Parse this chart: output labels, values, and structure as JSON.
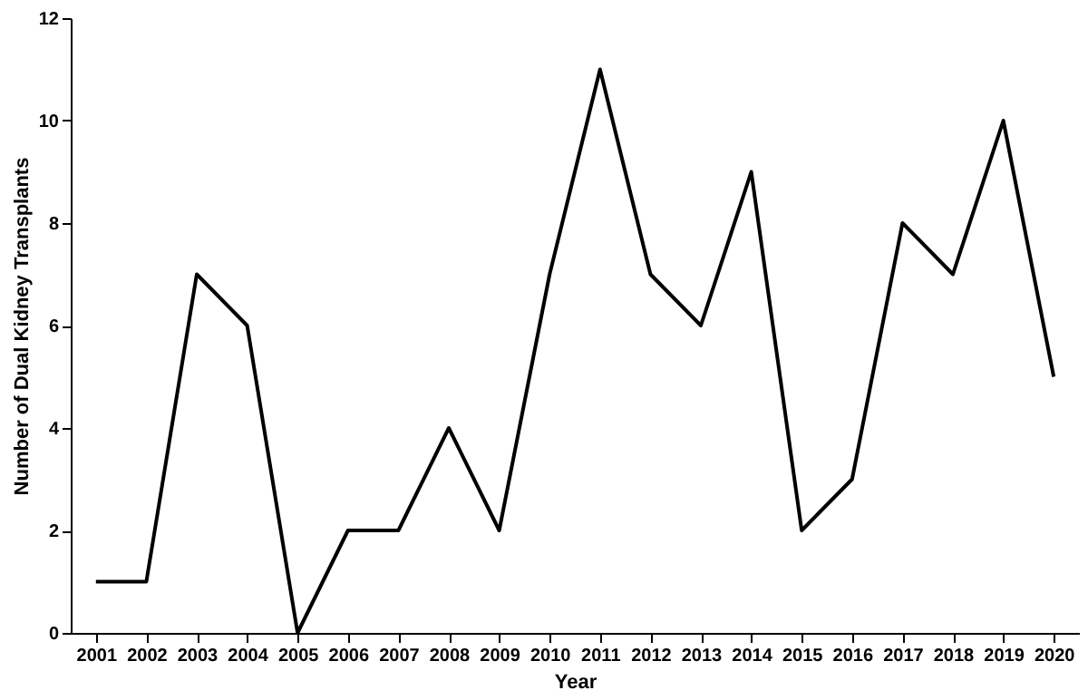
{
  "chart_data": {
    "type": "line",
    "xlabel": "Year",
    "ylabel": "Number of Dual Kidney Transplants",
    "categories": [
      "2001",
      "2002",
      "2003",
      "2004",
      "2005",
      "2006",
      "2007",
      "2008",
      "2009",
      "2010",
      "2011",
      "2012",
      "2013",
      "2014",
      "2015",
      "2016",
      "2017",
      "2018",
      "2019",
      "2020"
    ],
    "series": [
      {
        "color": "#000000",
        "values": [
          1,
          1,
          7,
          6,
          0,
          2,
          2,
          4,
          2,
          7,
          11,
          7,
          6,
          9,
          2,
          3,
          8,
          7,
          10,
          5
        ]
      }
    ],
    "ylim": [
      0,
      12
    ],
    "yticks": [
      0,
      2,
      4,
      6,
      8,
      10,
      12
    ],
    "grid": false,
    "legend": false,
    "marker": "none",
    "line_style": "solid"
  }
}
